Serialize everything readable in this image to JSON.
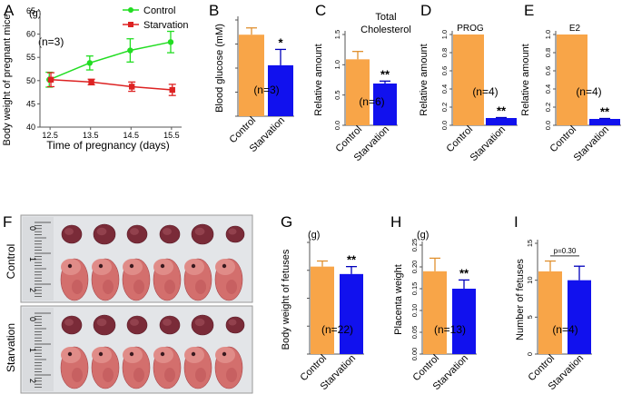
{
  "colors": {
    "control_line": "#22dd22",
    "starvation_line": "#dd2222",
    "control_bar": "#f8a548",
    "starvation_bar": "#1111ee",
    "axis": "#555555"
  },
  "photo_panel": {
    "letter": "F",
    "rows": [
      "Control",
      "Starvation"
    ],
    "ruler_marks": [
      "0",
      "1",
      "2"
    ],
    "counts": {
      "control_placentas": 6,
      "control_fetuses": 6,
      "starvation_placentas": 6,
      "starvation_fetuses": 6
    }
  },
  "chart_data": [
    {
      "id": "A",
      "letter": "A",
      "type": "line",
      "title": "",
      "xlabel": "Time of pregnancy (days)",
      "ylabel": "Body weight of pregnant mice",
      "unit": "(g)",
      "annotation": "(n=3)",
      "x": [
        12.5,
        13.5,
        14.5,
        15.5
      ],
      "x_ticks": [
        "12.5",
        "13.5",
        "14.5",
        "15.5"
      ],
      "ylim": [
        40,
        65
      ],
      "y_ticks": [
        "40",
        "45",
        "50",
        "55",
        "60",
        "65"
      ],
      "series": [
        {
          "name": "Control",
          "values": [
            50.2,
            53.8,
            56.5,
            58.3
          ],
          "errors": [
            1.6,
            1.5,
            2.5,
            2.3
          ],
          "color": "#22dd22",
          "marker": "circle"
        },
        {
          "name": "Starvation",
          "values": [
            50.2,
            49.7,
            48.7,
            48.0
          ],
          "errors": [
            1.5,
            0.6,
            1.0,
            1.2
          ],
          "color": "#dd2222",
          "marker": "square"
        }
      ]
    },
    {
      "id": "B",
      "letter": "B",
      "type": "bar",
      "title": "",
      "ylabel": "Blood glucose (mM)",
      "categories": [
        "Control",
        "Starvation"
      ],
      "values": [
        7.2,
        4.5
      ],
      "errors": [
        0.6,
        1.4
      ],
      "ylim": [
        0,
        8.5
      ],
      "sig": "*",
      "n_label": "(n=3)"
    },
    {
      "id": "C",
      "letter": "C",
      "type": "bar",
      "title": "Total Cholesterol",
      "ylabel": "Relative amount",
      "categories": [
        "Control",
        "Starvation"
      ],
      "values": [
        1.09,
        0.69
      ],
      "errors": [
        0.13,
        0.04
      ],
      "ylim": [
        0,
        1.5
      ],
      "y_ticks": [
        "0.0",
        "0.5",
        "1.0",
        "1.5"
      ],
      "sig": "**",
      "n_label": "(n=6)"
    },
    {
      "id": "D",
      "letter": "D",
      "type": "bar",
      "title": "PROG",
      "ylabel": "Relative amount",
      "categories": [
        "Control",
        "Starvation"
      ],
      "values": [
        1.0,
        0.08
      ],
      "errors": [
        0,
        0.005
      ],
      "ylim": [
        0,
        1.0
      ],
      "y_ticks": [
        "0.0",
        "0.2",
        "0.4",
        "0.6",
        "0.8",
        "1.0"
      ],
      "sig": "**",
      "n_label": "(n=4)"
    },
    {
      "id": "E",
      "letter": "E",
      "type": "bar",
      "title": "E2",
      "ylabel": "Relative amount",
      "categories": [
        "Control",
        "Starvation"
      ],
      "values": [
        1.0,
        0.07
      ],
      "errors": [
        0,
        0.005
      ],
      "ylim": [
        0,
        1.0
      ],
      "y_ticks": [
        "0.0",
        "0.2",
        "0.4",
        "0.6",
        "0.8",
        "1.0"
      ],
      "sig": "**",
      "n_label": "(n=4)"
    },
    {
      "id": "G",
      "letter": "G",
      "type": "bar",
      "title": "",
      "ylabel": "Body weight of fetuses",
      "unit": "(g)",
      "categories": [
        "Control",
        "Starvation"
      ],
      "values": [
        0.47,
        0.43
      ],
      "errors": [
        0.03,
        0.04
      ],
      "ylim": [
        0,
        0.6
      ],
      "sig": "**",
      "n_label": "(n=22)"
    },
    {
      "id": "H",
      "letter": "H",
      "type": "bar",
      "title": "",
      "ylabel": "Placenta weight",
      "unit": "(g)",
      "categories": [
        "Control",
        "Starvation"
      ],
      "values": [
        0.19,
        0.15
      ],
      "errors": [
        0.03,
        0.02
      ],
      "ylim": [
        0,
        0.25
      ],
      "y_ticks": [
        "0.00",
        "0.05",
        "0.10",
        "0.15",
        "0.20",
        "0.25"
      ],
      "sig": "**",
      "n_label": "(n=13)"
    },
    {
      "id": "I",
      "letter": "I",
      "type": "bar",
      "title": "",
      "ylabel": "Number of fetuses",
      "categories": [
        "Control",
        "Starvation"
      ],
      "values": [
        11.2,
        10.0
      ],
      "errors": [
        1.4,
        1.9
      ],
      "ylim": [
        0,
        15
      ],
      "y_ticks": [
        "0",
        "5",
        "10",
        "15"
      ],
      "pvalue": "p=0.30",
      "n_label": "(n=4)"
    }
  ]
}
